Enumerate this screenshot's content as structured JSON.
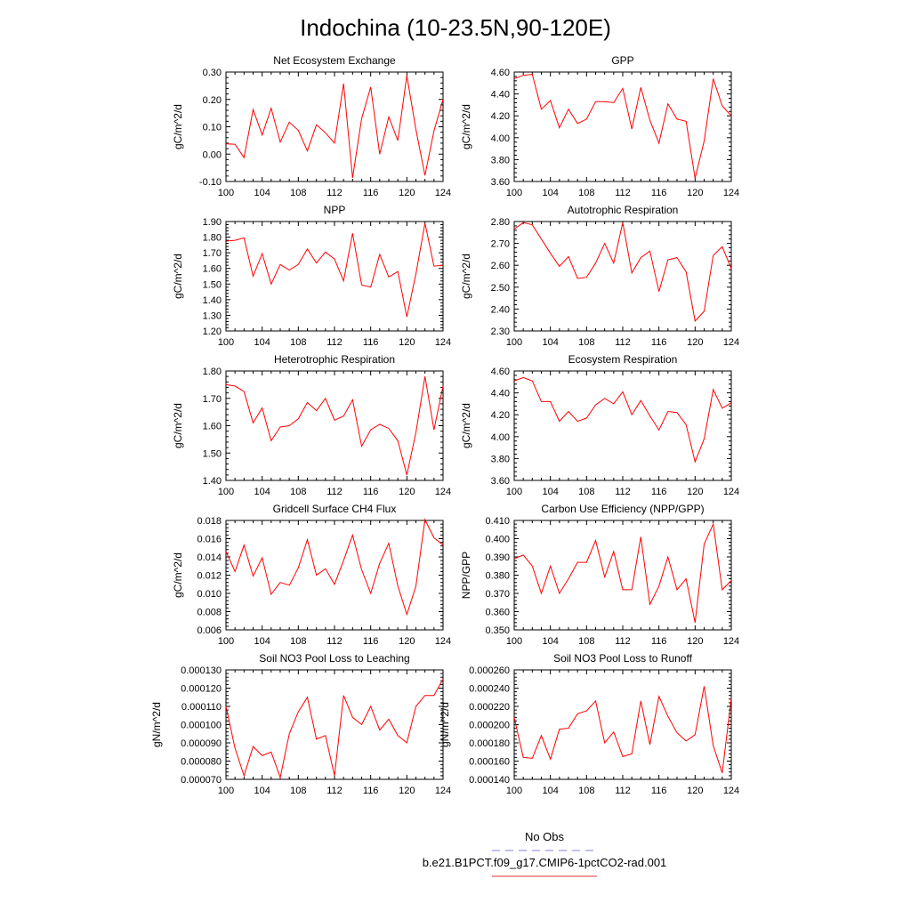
{
  "title": "Indochina (10-23.5N,90-120E)",
  "legend": {
    "entries": [
      {
        "label": "No Obs",
        "color": "#8080e0",
        "dash": true
      },
      {
        "label": "b.e21.B1PCT.f09_g17.CMIP6-1pctCO2-rad.001",
        "color": "#e03030",
        "dash": false
      }
    ]
  },
  "line_color": "#ff0000",
  "chart_data": [
    {
      "type": "line",
      "title": "Net Ecosystem Exchange",
      "xlabel": "",
      "ylabel": "gC/m^2/d",
      "xlim": [
        100,
        124
      ],
      "ylim": [
        -0.1,
        0.3
      ],
      "xticks": [
        "100",
        "104",
        "108",
        "112",
        "116",
        "120",
        "124"
      ],
      "yticks": [
        "-0.10",
        "0.00",
        "0.10",
        "0.20",
        "0.30"
      ],
      "x": [
        100,
        101,
        102,
        103,
        104,
        105,
        106,
        107,
        108,
        109,
        110,
        111,
        112,
        113,
        114,
        115,
        116,
        117,
        118,
        119,
        120,
        121,
        122,
        123,
        124
      ],
      "values": [
        0.038,
        0.036,
        -0.013,
        0.163,
        0.07,
        0.168,
        0.044,
        0.117,
        0.087,
        0.012,
        0.107,
        0.078,
        0.04,
        0.258,
        -0.087,
        0.13,
        0.245,
        0.0,
        0.136,
        0.05,
        0.287,
        0.09,
        -0.078,
        0.085,
        0.2
      ]
    },
    {
      "type": "line",
      "title": "GPP",
      "xlabel": "",
      "ylabel": "gC/m^2/d",
      "xlim": [
        100,
        124
      ],
      "ylim": [
        3.6,
        4.6
      ],
      "xticks": [
        "100",
        "104",
        "108",
        "112",
        "116",
        "120",
        "124"
      ],
      "yticks": [
        "3.60",
        "3.80",
        "4.00",
        "4.20",
        "4.40",
        "4.60"
      ],
      "x": [
        100,
        101,
        102,
        103,
        104,
        105,
        106,
        107,
        108,
        109,
        110,
        111,
        112,
        113,
        114,
        115,
        116,
        117,
        118,
        119,
        120,
        121,
        122,
        123,
        124
      ],
      "values": [
        4.54,
        4.57,
        4.58,
        4.26,
        4.34,
        4.09,
        4.26,
        4.13,
        4.17,
        4.33,
        4.33,
        4.32,
        4.45,
        4.08,
        4.46,
        4.16,
        3.95,
        4.31,
        4.17,
        4.15,
        3.63,
        3.97,
        4.54,
        4.29,
        4.2
      ]
    },
    {
      "type": "line",
      "title": "NPP",
      "xlabel": "",
      "ylabel": "gC/m^2/d",
      "xlim": [
        100,
        124
      ],
      "ylim": [
        1.2,
        1.9
      ],
      "xticks": [
        "100",
        "104",
        "108",
        "112",
        "116",
        "120",
        "124"
      ],
      "yticks": [
        "1.20",
        "1.30",
        "1.40",
        "1.50",
        "1.60",
        "1.70",
        "1.80",
        "1.90"
      ],
      "x": [
        100,
        101,
        102,
        103,
        104,
        105,
        106,
        107,
        108,
        109,
        110,
        111,
        112,
        113,
        114,
        115,
        116,
        117,
        118,
        119,
        120,
        121,
        122,
        123,
        124
      ],
      "values": [
        1.775,
        1.78,
        1.795,
        1.55,
        1.695,
        1.5,
        1.625,
        1.59,
        1.625,
        1.725,
        1.635,
        1.705,
        1.66,
        1.52,
        1.825,
        1.495,
        1.48,
        1.69,
        1.545,
        1.58,
        1.29,
        1.565,
        1.89,
        1.615,
        1.62
      ]
    },
    {
      "type": "line",
      "title": "Autotrophic Respiration",
      "xlabel": "",
      "ylabel": "gC/m^2/d",
      "xlim": [
        100,
        124
      ],
      "ylim": [
        2.3,
        2.8
      ],
      "xticks": [
        "100",
        "104",
        "108",
        "112",
        "116",
        "120",
        "124"
      ],
      "yticks": [
        "2.30",
        "2.40",
        "2.50",
        "2.60",
        "2.70",
        "2.80"
      ],
      "x": [
        100,
        101,
        102,
        103,
        104,
        105,
        106,
        107,
        108,
        109,
        110,
        111,
        112,
        113,
        114,
        115,
        116,
        117,
        118,
        119,
        120,
        121,
        122,
        123,
        124
      ],
      "values": [
        2.765,
        2.795,
        2.785,
        2.72,
        2.655,
        2.595,
        2.64,
        2.54,
        2.545,
        2.61,
        2.7,
        2.61,
        2.795,
        2.565,
        2.635,
        2.665,
        2.48,
        2.625,
        2.635,
        2.57,
        2.345,
        2.39,
        2.645,
        2.685,
        2.585
      ]
    },
    {
      "type": "line",
      "title": "Heterotrophic Respiration",
      "xlabel": "",
      "ylabel": "gC/m^2/d",
      "xlim": [
        100,
        124
      ],
      "ylim": [
        1.4,
        1.8
      ],
      "xticks": [
        "100",
        "104",
        "108",
        "112",
        "116",
        "120",
        "124"
      ],
      "yticks": [
        "1.40",
        "1.50",
        "1.60",
        "1.70",
        "1.80"
      ],
      "x": [
        100,
        101,
        102,
        103,
        104,
        105,
        106,
        107,
        108,
        109,
        110,
        111,
        112,
        113,
        114,
        115,
        116,
        117,
        118,
        119,
        120,
        121,
        122,
        123,
        124
      ],
      "values": [
        1.75,
        1.745,
        1.725,
        1.61,
        1.665,
        1.545,
        1.595,
        1.6,
        1.625,
        1.685,
        1.655,
        1.7,
        1.62,
        1.635,
        1.695,
        1.525,
        1.585,
        1.605,
        1.59,
        1.545,
        1.42,
        1.575,
        1.78,
        1.585,
        1.745
      ]
    },
    {
      "type": "line",
      "title": "Ecosystem Respiration",
      "xlabel": "",
      "ylabel": "gC/m^2/d",
      "xlim": [
        100,
        124
      ],
      "ylim": [
        3.6,
        4.6
      ],
      "xticks": [
        "100",
        "104",
        "108",
        "112",
        "116",
        "120",
        "124"
      ],
      "yticks": [
        "3.60",
        "3.80",
        "4.00",
        "4.20",
        "4.40",
        "4.60"
      ],
      "x": [
        100,
        101,
        102,
        103,
        104,
        105,
        106,
        107,
        108,
        109,
        110,
        111,
        112,
        113,
        114,
        115,
        116,
        117,
        118,
        119,
        120,
        121,
        122,
        123,
        124
      ],
      "values": [
        4.51,
        4.54,
        4.51,
        4.32,
        4.32,
        4.14,
        4.23,
        4.14,
        4.17,
        4.29,
        4.35,
        4.3,
        4.41,
        4.2,
        4.33,
        4.19,
        4.06,
        4.23,
        4.22,
        4.11,
        3.77,
        3.98,
        4.43,
        4.26,
        4.31
      ]
    },
    {
      "type": "line",
      "title": "Gridcell Surface CH4 Flux",
      "xlabel": "",
      "ylabel": "gC/m^2/d",
      "xlim": [
        100,
        124
      ],
      "ylim": [
        0.006,
        0.018
      ],
      "xticks": [
        "100",
        "104",
        "108",
        "112",
        "116",
        "120",
        "124"
      ],
      "yticks": [
        "0.006",
        "0.008",
        "0.010",
        "0.012",
        "0.014",
        "0.016",
        "0.018"
      ],
      "x": [
        100,
        101,
        102,
        103,
        104,
        105,
        106,
        107,
        108,
        109,
        110,
        111,
        112,
        113,
        114,
        115,
        116,
        117,
        118,
        119,
        120,
        121,
        122,
        123,
        124
      ],
      "values": [
        0.0146,
        0.0124,
        0.0153,
        0.0119,
        0.0139,
        0.0099,
        0.0112,
        0.0109,
        0.0128,
        0.0159,
        0.012,
        0.0127,
        0.011,
        0.0136,
        0.0164,
        0.0126,
        0.01,
        0.0133,
        0.0155,
        0.0108,
        0.0077,
        0.0108,
        0.0181,
        0.0161,
        0.0153
      ]
    },
    {
      "type": "line",
      "title": "Carbon Use Efficiency (NPP/GPP)",
      "xlabel": "",
      "ylabel": "NPP/GPP",
      "xlim": [
        100,
        124
      ],
      "ylim": [
        0.35,
        0.41
      ],
      "xticks": [
        "100",
        "104",
        "108",
        "112",
        "116",
        "120",
        "124"
      ],
      "yticks": [
        "0.350",
        "0.360",
        "0.370",
        "0.380",
        "0.390",
        "0.400",
        "0.410"
      ],
      "x": [
        100,
        101,
        102,
        103,
        104,
        105,
        106,
        107,
        108,
        109,
        110,
        111,
        112,
        113,
        114,
        115,
        116,
        117,
        118,
        119,
        120,
        121,
        122,
        123,
        124
      ],
      "values": [
        0.389,
        0.391,
        0.385,
        0.37,
        0.385,
        0.37,
        0.378,
        0.387,
        0.387,
        0.399,
        0.379,
        0.393,
        0.372,
        0.372,
        0.401,
        0.364,
        0.374,
        0.39,
        0.372,
        0.378,
        0.354,
        0.397,
        0.408,
        0.372,
        0.377
      ]
    },
    {
      "type": "line",
      "title": "Soil NO3 Pool Loss to Leaching",
      "xlabel": "",
      "ylabel": "gN/m^2/d",
      "xlim": [
        100,
        124
      ],
      "ylim": [
        7e-05,
        0.00013
      ],
      "xticks": [
        "100",
        "104",
        "108",
        "112",
        "116",
        "120",
        "124"
      ],
      "yticks": [
        "0.000070",
        "0.000080",
        "0.000090",
        "0.000100",
        "0.000110",
        "0.000120",
        "0.000130"
      ],
      "x": [
        100,
        101,
        102,
        103,
        104,
        105,
        106,
        107,
        108,
        109,
        110,
        111,
        112,
        113,
        114,
        115,
        116,
        117,
        118,
        119,
        120,
        121,
        122,
        123,
        124
      ],
      "values": [
        0.00011,
        8.7e-05,
        7.2e-05,
        8.8e-05,
        8.3e-05,
        8.5e-05,
        7.1e-05,
        9.5e-05,
        0.000107,
        0.000115,
        9.2e-05,
        9.4e-05,
        7.2e-05,
        0.000116,
        0.000104,
        0.0001,
        0.00011,
        9.7e-05,
        0.000103,
        9.4e-05,
        9e-05,
        0.00011,
        0.000116,
        0.000116,
        0.000125
      ]
    },
    {
      "type": "line",
      "title": "Soil NO3 Pool Loss to Runoff",
      "xlabel": "",
      "ylabel": "gN/m^2/d",
      "xlim": [
        100,
        124
      ],
      "ylim": [
        0.00014,
        0.00026
      ],
      "xticks": [
        "100",
        "104",
        "108",
        "112",
        "116",
        "120",
        "124"
      ],
      "yticks": [
        "0.000140",
        "0.000160",
        "0.000180",
        "0.000200",
        "0.000220",
        "0.000240",
        "0.000260"
      ],
      "x": [
        100,
        101,
        102,
        103,
        104,
        105,
        106,
        107,
        108,
        109,
        110,
        111,
        112,
        113,
        114,
        115,
        116,
        117,
        118,
        119,
        120,
        121,
        122,
        123,
        124
      ],
      "values": [
        0.000208,
        0.000164,
        0.000163,
        0.000188,
        0.000162,
        0.000195,
        0.000196,
        0.000212,
        0.000215,
        0.000226,
        0.00018,
        0.000192,
        0.000165,
        0.000168,
        0.000226,
        0.000178,
        0.000231,
        0.000209,
        0.000191,
        0.000182,
        0.000189,
        0.000242,
        0.000177,
        0.000147,
        0.000229
      ]
    }
  ]
}
